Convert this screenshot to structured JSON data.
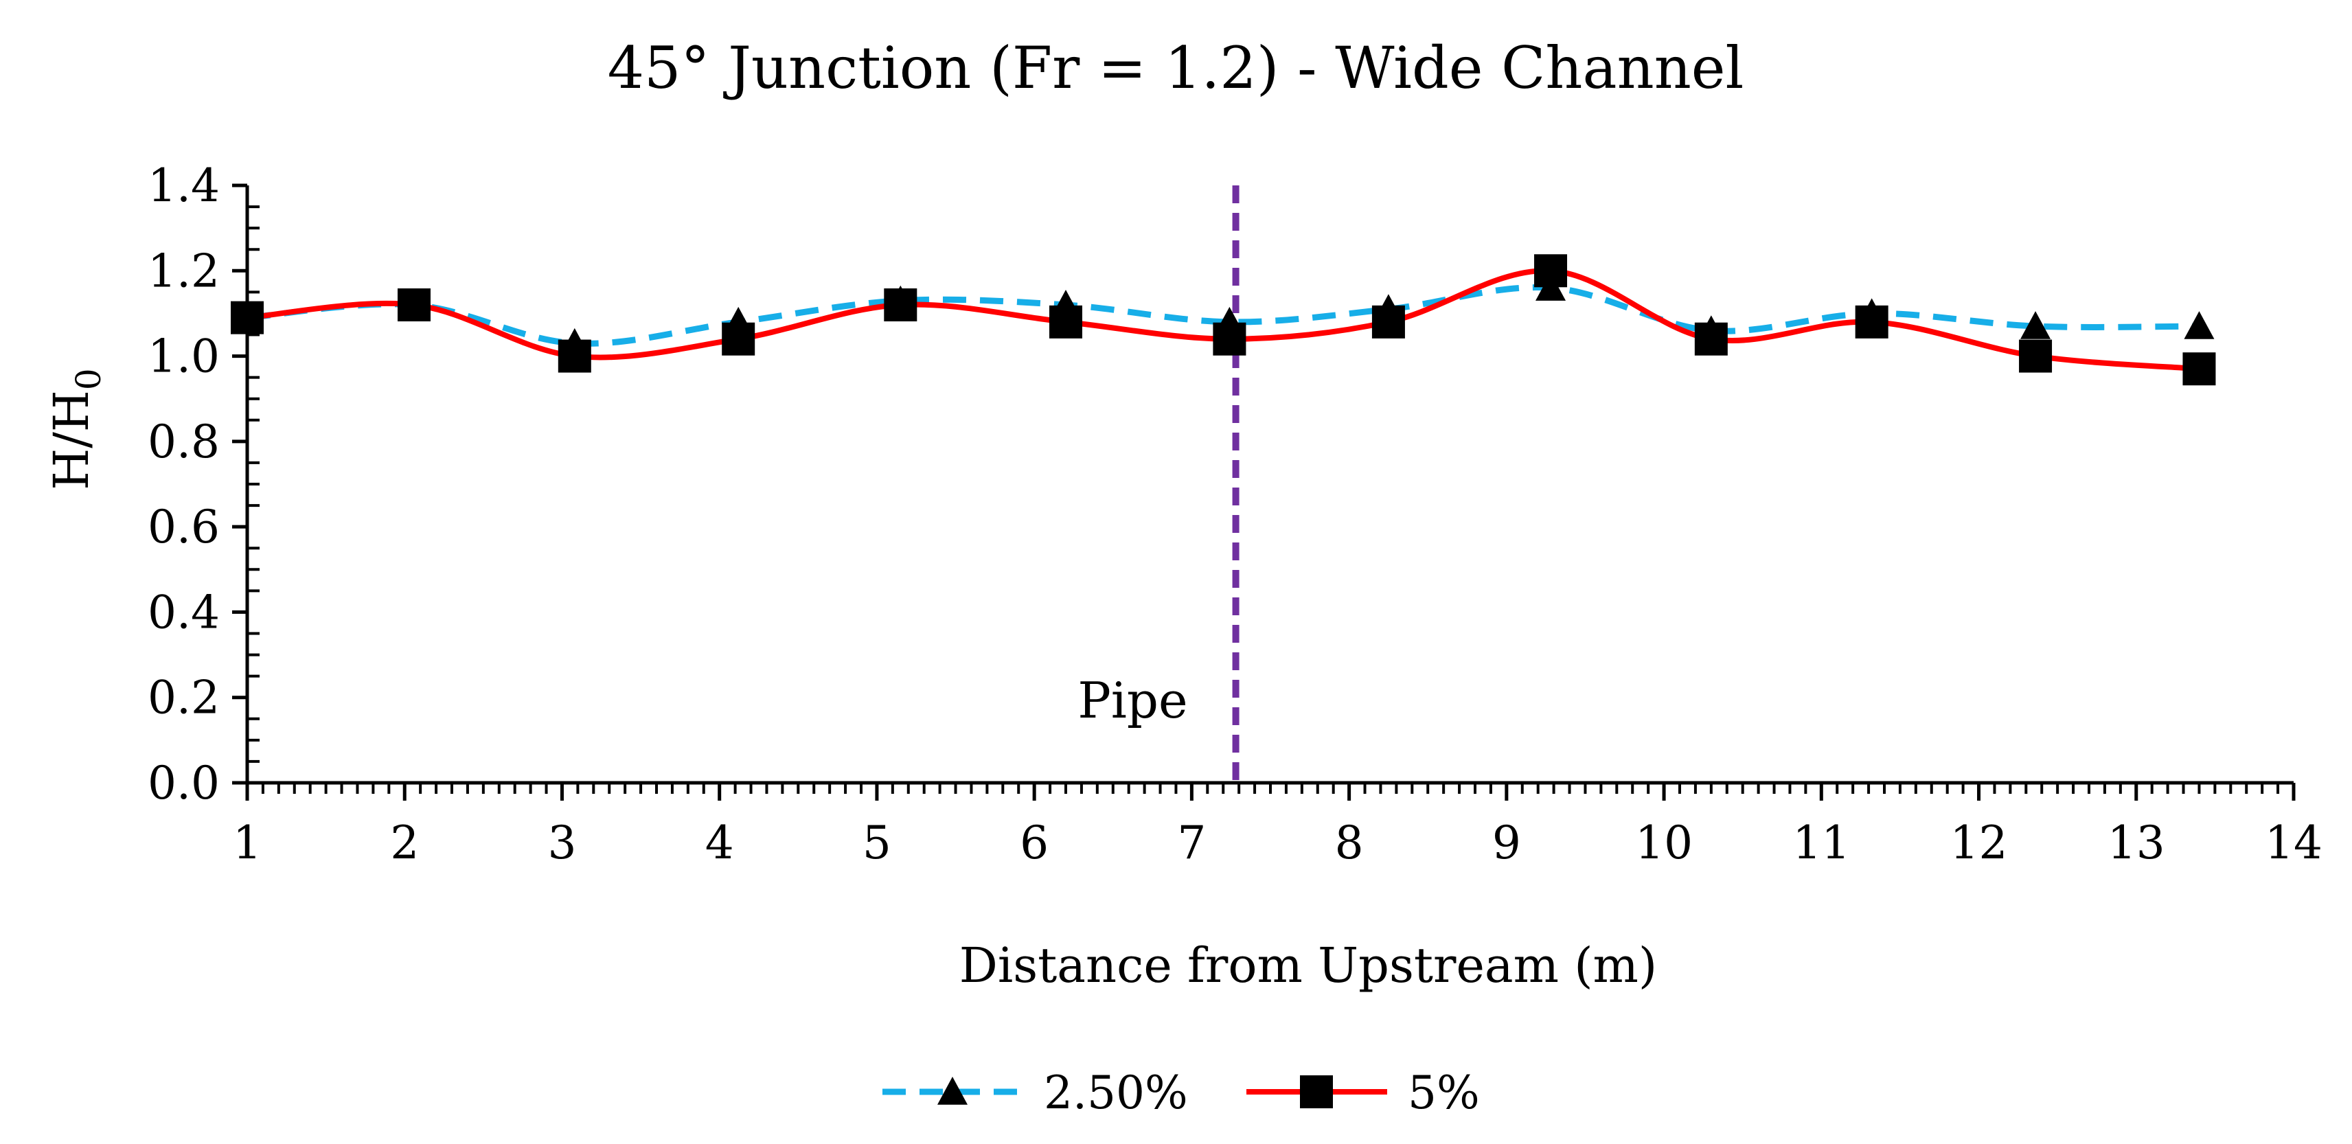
{
  "chart_data": {
    "type": "line",
    "title": "45° Junction (Fr = 1.2) - Wide Channel",
    "xlabel": "Distance from Upstream (m)",
    "ylabel_main": "H/H",
    "ylabel_sub": "0",
    "xlim": [
      1,
      14
    ],
    "ylim": [
      0,
      1.4
    ],
    "x_ticks": [
      "1",
      "2",
      "3",
      "4",
      "5",
      "6",
      "7",
      "8",
      "9",
      "10",
      "11",
      "12",
      "13",
      "14"
    ],
    "y_ticks": [
      "0.0",
      "0.2",
      "0.4",
      "0.6",
      "0.8",
      "1.0",
      "1.2",
      "1.4"
    ],
    "grid": false,
    "legend_position": "bottom-center",
    "annotation": {
      "label": "Pipe",
      "x": 7.28
    },
    "series": [
      {
        "name": "2.50%",
        "color": "#17AEE8",
        "line_style": "dashed",
        "marker": "triangle",
        "x": [
          1.0,
          2.06,
          3.08,
          4.12,
          5.15,
          6.2,
          7.24,
          8.25,
          9.28,
          10.3,
          11.32,
          12.36,
          13.4
        ],
        "y": [
          1.09,
          1.12,
          1.03,
          1.08,
          1.13,
          1.12,
          1.08,
          1.11,
          1.16,
          1.06,
          1.1,
          1.07,
          1.07
        ]
      },
      {
        "name": "5%",
        "color": "#FF0000",
        "line_style": "solid",
        "marker": "square",
        "x": [
          1.0,
          2.06,
          3.08,
          4.12,
          5.15,
          6.2,
          7.24,
          8.25,
          9.28,
          10.3,
          11.32,
          12.36,
          13.4
        ],
        "y": [
          1.09,
          1.12,
          1.0,
          1.04,
          1.12,
          1.08,
          1.04,
          1.08,
          1.2,
          1.04,
          1.08,
          1.0,
          0.97
        ]
      }
    ],
    "marker_color": "#000000",
    "pipe_line_color": "#7030A0"
  }
}
